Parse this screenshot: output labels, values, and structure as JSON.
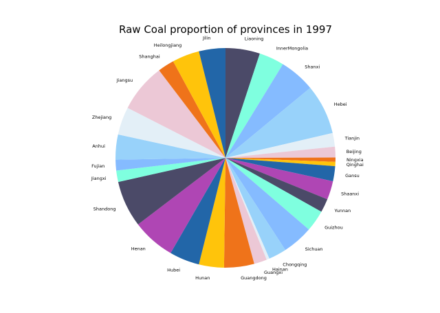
{
  "chart_data": {
    "type": "pie",
    "title": "Raw Coal proportion of provinces in 1997",
    "start_angle": 90,
    "direction": "clockwise",
    "colors": [
      "#4b4a68",
      "#7fffdf",
      "#85bbff",
      "#98d2fa",
      "#e3eff7",
      "#ecc8d6",
      "#ef731a",
      "#ffc40b",
      "#2266a8",
      "#af46b4"
    ],
    "slices": [
      {
        "label": "Liaoning",
        "value": 4.8
      },
      {
        "label": "InnerMongolia",
        "value": 3.5
      },
      {
        "label": "Shanxi",
        "value": 5.0
      },
      {
        "label": "Hebei",
        "value": 7.0
      },
      {
        "label": "Tianjin",
        "value": 1.9
      },
      {
        "label": "Beijing",
        "value": 1.5
      },
      {
        "label": "Ningxia",
        "value": 0.6
      },
      {
        "label": "Qinghai",
        "value": 0.6
      },
      {
        "label": "Gansu",
        "value": 2.1
      },
      {
        "label": "Shaanxi",
        "value": 2.6
      },
      {
        "label": "Yunnan",
        "value": 1.9
      },
      {
        "label": "Guizhou",
        "value": 3.0
      },
      {
        "label": "Sichuan",
        "value": 4.3
      },
      {
        "label": "Chongqing",
        "value": 2.5
      },
      {
        "label": "Hainan",
        "value": 0.4
      },
      {
        "label": "Guangxi",
        "value": 1.8
      },
      {
        "label": "Guangdong",
        "value": 4.2
      },
      {
        "label": "Hunan",
        "value": 3.5
      },
      {
        "label": "Hubei",
        "value": 4.2
      },
      {
        "label": "Henan",
        "value": 6.0
      },
      {
        "label": "Shandong",
        "value": 6.5
      },
      {
        "label": "Jiangxi",
        "value": 1.6
      },
      {
        "label": "Fujian",
        "value": 1.5
      },
      {
        "label": "Anhui",
        "value": 3.5
      },
      {
        "label": "Zhejiang",
        "value": 3.9
      },
      {
        "label": "Jiangsu",
        "value": 6.8
      },
      {
        "label": "Shanghai",
        "value": 2.3
      },
      {
        "label": "Heilongjiang",
        "value": 3.8
      },
      {
        "label": "Jilin",
        "value": 3.7
      }
    ]
  }
}
